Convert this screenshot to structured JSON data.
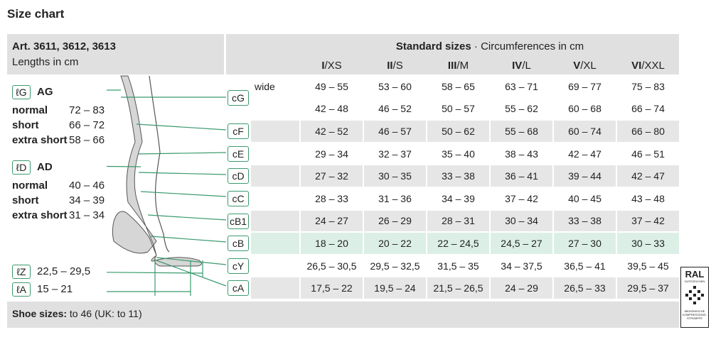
{
  "title": "Size chart",
  "left_header": {
    "article": "Art. 3611, 3612, 3613",
    "unit": "Lengths in cm"
  },
  "header": {
    "title": "Standard sizes",
    "subtitle": "· Circumferences in cm",
    "sizes": [
      {
        "roman": "I",
        "letter": "/XS"
      },
      {
        "roman": "II",
        "letter": "/S"
      },
      {
        "roman": "III",
        "letter": "/M"
      },
      {
        "roman": "IV",
        "letter": "/L"
      },
      {
        "roman": "V",
        "letter": "/XL"
      },
      {
        "roman": "VI",
        "letter": "/XXL"
      }
    ]
  },
  "lengths": [
    {
      "label": "ℓG",
      "name": "AG",
      "rows": [
        [
          "normal",
          "72 – 83"
        ],
        [
          "short",
          "66 – 72"
        ],
        [
          "extra short",
          "58 – 66"
        ]
      ]
    },
    {
      "label": "ℓD",
      "name": "AD",
      "rows": [
        [
          "normal",
          "40 – 46"
        ],
        [
          "short",
          "34 – 39"
        ],
        [
          "extra short",
          "31 – 34"
        ]
      ]
    },
    {
      "label": "ℓZ",
      "value": "22,5 – 29,5"
    },
    {
      "label": "ℓA",
      "value": "15 – 21"
    }
  ],
  "rows": [
    {
      "label": "cG",
      "note": "wide",
      "values": [
        "49 – 55",
        "53 – 60",
        "58 – 65",
        "63 – 71",
        "69 – 77",
        "75 – 83"
      ]
    },
    {
      "values": [
        "42 – 48",
        "46 – 52",
        "50 – 57",
        "55 – 62",
        "60 – 68",
        "66 – 74"
      ]
    },
    {
      "label": "cF",
      "values": [
        "42 – 52",
        "46 – 57",
        "50 – 62",
        "55 – 68",
        "60 – 74",
        "66 – 80"
      ]
    },
    {
      "label": "cE",
      "values": [
        "29 – 34",
        "32 – 37",
        "35 – 40",
        "38 – 43",
        "42 – 47",
        "46 – 51"
      ]
    },
    {
      "label": "cD",
      "values": [
        "27 – 32",
        "30 – 35",
        "33 – 38",
        "36 – 41",
        "39 – 44",
        "42 – 47"
      ]
    },
    {
      "label": "cC",
      "values": [
        "28 – 33",
        "31 – 36",
        "34 – 39",
        "37 – 42",
        "40 – 45",
        "43 – 48"
      ]
    },
    {
      "label": "cB1",
      "values": [
        "24 – 27",
        "26 – 29",
        "28 – 31",
        "30 – 34",
        "33 – 38",
        "37 – 42"
      ]
    },
    {
      "label": "cB",
      "values": [
        "18 – 20",
        "20 – 22",
        "22 – 24,5",
        "24,5 – 27",
        "27 – 30",
        "30 – 33"
      ]
    },
    {
      "label": "cY",
      "values": [
        "26,5 – 30,5",
        "29,5 – 32,5",
        "31,5 – 35",
        "34 – 37,5",
        "36,5 – 41",
        "39,5 – 45"
      ]
    },
    {
      "label": "cA",
      "values": [
        "17,5 – 22",
        "19,5 – 24",
        "21,5 – 26,5",
        "24 – 29",
        "26,5 – 33",
        "29,5 – 37"
      ]
    }
  ],
  "footer": {
    "label": "Shoe sizes:",
    "text": "to 46 (UK: to 11)"
  },
  "badge": {
    "name": "RAL",
    "sub": "GÜTEZEICHEN",
    "caption": "MEDIZINISCHE KOMPRESSIONS-STRÜMPFE"
  }
}
